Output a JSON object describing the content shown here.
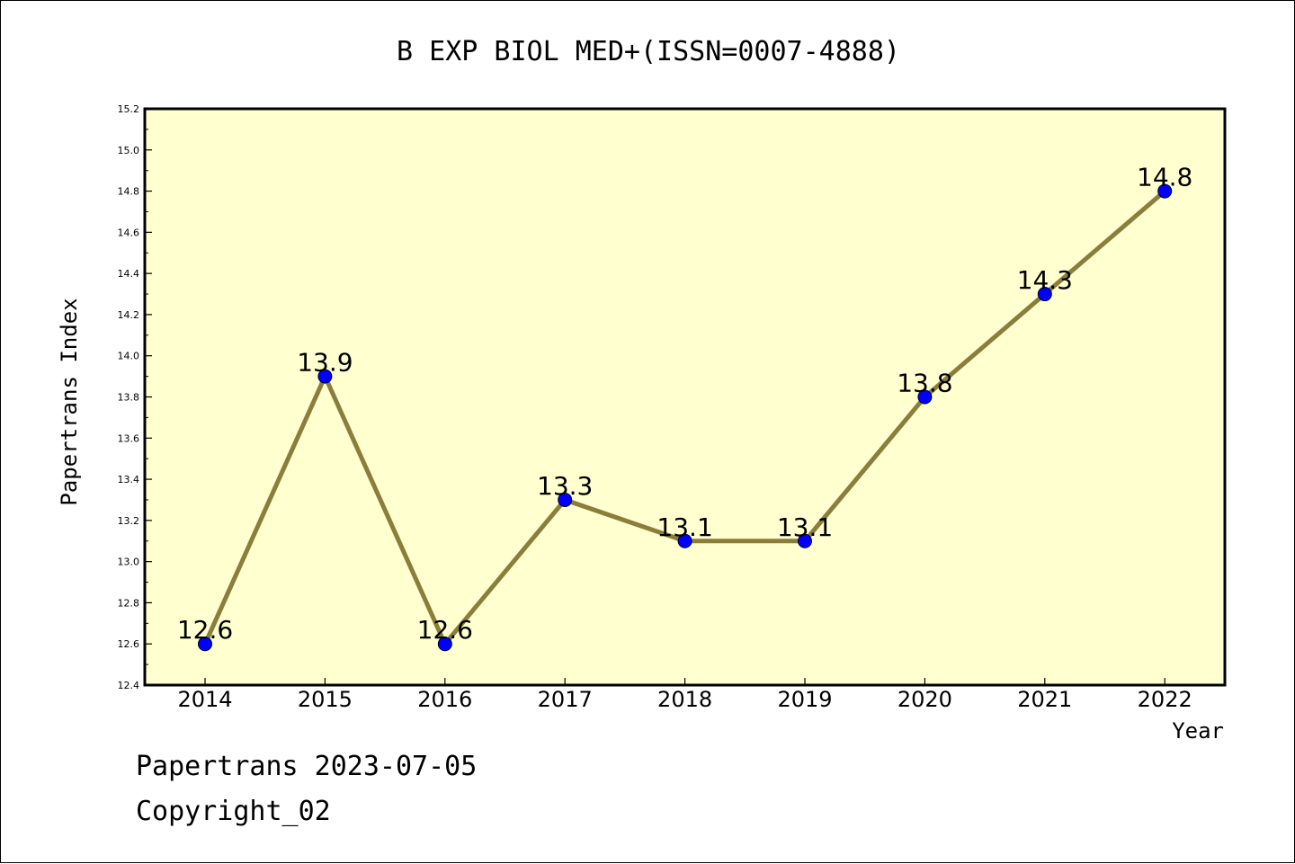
{
  "chart_data": {
    "type": "line",
    "title": "B EXP BIOL MED+(ISSN=0007-4888)",
    "xlabel": "Year",
    "ylabel": "Papertrans Index",
    "categories": [
      "2014",
      "2015",
      "2016",
      "2017",
      "2018",
      "2019",
      "2020",
      "2021",
      "2022"
    ],
    "series": [
      {
        "values": [
          12.6,
          13.9,
          12.6,
          13.3,
          13.1,
          13.1,
          13.8,
          14.3,
          14.8
        ],
        "data_labels": [
          "12.6",
          "13.9",
          "12.6",
          "13.3",
          "13.1",
          "13.1",
          "13.8",
          "14.3",
          "14.8"
        ]
      }
    ],
    "ylim": [
      12.4,
      15.2
    ],
    "yticks": [
      "12.4",
      "12.6",
      "12.8",
      "13.0",
      "13.2",
      "13.4",
      "13.6",
      "13.8",
      "14.0",
      "14.2",
      "14.4",
      "14.6",
      "14.8",
      "15.0",
      "15.2"
    ],
    "grid": false,
    "legend": "none",
    "colors": {
      "line": "#8b7d3a",
      "marker": "#0000ff",
      "plot_background": "#ffffd0",
      "axis": "#000000"
    }
  },
  "footer": {
    "line1": "Papertrans 2023-07-05",
    "line2": "Copyright_02"
  }
}
